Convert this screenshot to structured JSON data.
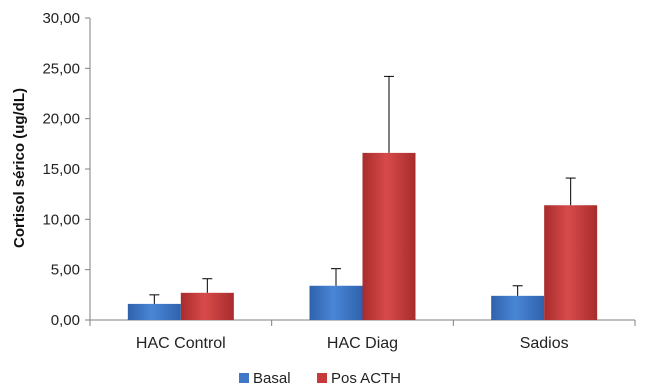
{
  "chart_data": {
    "type": "bar",
    "title": "",
    "xlabel": "",
    "ylabel": "Cortisol  sérico  (ug/dL)",
    "ylim": [
      0,
      30
    ],
    "yticks": [
      0,
      5,
      10,
      15,
      20,
      25,
      30
    ],
    "ytick_labels": [
      "0,00",
      "5,00",
      "10,00",
      "15,00",
      "20,00",
      "25,00",
      "30,00"
    ],
    "categories": [
      "HAC Control",
      "HAC Diag",
      "Sadios"
    ],
    "series": [
      {
        "name": "Basal",
        "color": "#3f78c8",
        "values": [
          1.6,
          3.4,
          2.4
        ],
        "error": [
          0.9,
          1.7,
          1.0
        ]
      },
      {
        "name": "Pos ACTH",
        "color": "#c83a3a",
        "values": [
          2.7,
          16.6,
          11.4
        ],
        "error": [
          1.4,
          7.6,
          2.7
        ]
      }
    ],
    "error_bars": "upper",
    "grid": false,
    "legend_position": "bottom"
  }
}
